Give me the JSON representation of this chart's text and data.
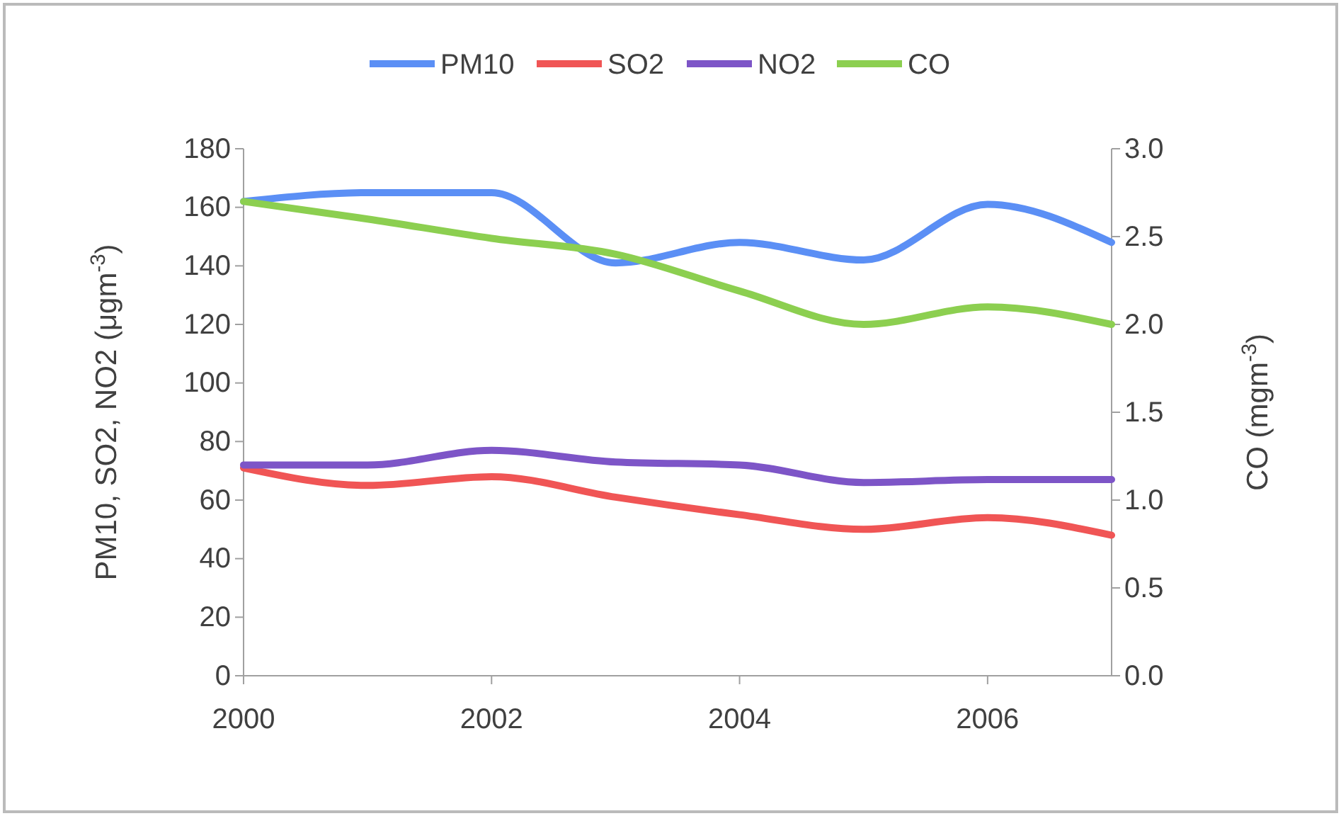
{
  "chart_data": {
    "type": "line",
    "x": [
      2000,
      2001,
      2002,
      2003,
      2004,
      2005,
      2006,
      2007
    ],
    "xlim": [
      2000,
      2007
    ],
    "xticks": [
      2000,
      2002,
      2004,
      2006
    ],
    "ylim": [
      0,
      180
    ],
    "yticks": [
      0,
      20,
      40,
      60,
      80,
      100,
      120,
      140,
      160,
      180
    ],
    "y2lim": [
      0,
      3
    ],
    "y2ticks": [
      {
        "value": 0,
        "label": "0.0"
      },
      {
        "value": 0.5,
        "label": "0.5"
      },
      {
        "value": 1,
        "label": "1.0"
      },
      {
        "value": 1.5,
        "label": "1.5"
      },
      {
        "value": 2,
        "label": "2.0"
      },
      {
        "value": 2.5,
        "label": "2.5"
      },
      {
        "value": 3,
        "label": "3.0"
      }
    ],
    "ylabel": "PM10, SO2, NO2 (μgm$^{-3}$)",
    "y2label": "CO (mgm$^{-3}$)",
    "legend": "top",
    "grid": false,
    "marker": "none",
    "line_style": "solid",
    "series": [
      {
        "name": "PM10",
        "color": "#5b8ff5",
        "values": [
          162,
          165,
          165,
          141,
          148,
          142,
          161,
          148
        ]
      },
      {
        "name": "SO2",
        "color": "#f05555",
        "values": [
          71,
          65,
          68,
          61,
          55,
          50,
          54,
          48
        ]
      },
      {
        "name": "NO2",
        "color": "#7d55c7",
        "values": [
          72,
          72,
          77,
          73,
          72,
          66,
          67,
          67
        ]
      },
      {
        "name": "CO",
        "color": "#8ccf50",
        "axis": "y2",
        "values": [
          2.7,
          2.6,
          2.49,
          2.4,
          2.19,
          2.0,
          2.1,
          2.0
        ]
      }
    ]
  }
}
